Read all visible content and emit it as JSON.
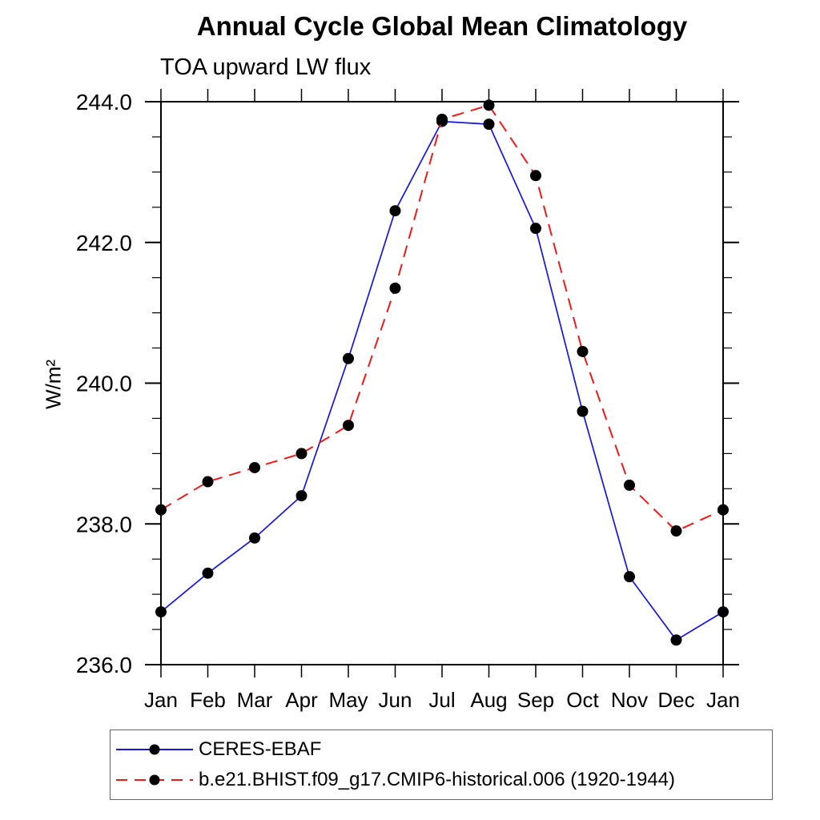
{
  "chart_data": {
    "type": "line",
    "title": "Annual Cycle Global Mean Climatology",
    "subtitle": "TOA upward LW flux",
    "xlabel": "",
    "ylabel": "W/m²",
    "categories": [
      "Jan",
      "Feb",
      "Mar",
      "Apr",
      "May",
      "Jun",
      "Jul",
      "Aug",
      "Sep",
      "Oct",
      "Nov",
      "Dec",
      "Jan"
    ],
    "series": [
      {
        "name": "CERES-EBAF",
        "color": "#1515dd",
        "style": "solid",
        "values": [
          236.75,
          237.3,
          237.8,
          238.4,
          240.35,
          242.45,
          243.72,
          243.68,
          242.2,
          239.6,
          237.25,
          236.35,
          236.75
        ]
      },
      {
        "name": "b.e21.BHIST.f09_g17.CMIP6-historical.006 (1920-1944)",
        "color": "#ee1a1a",
        "style": "dashed",
        "values": [
          238.2,
          238.6,
          238.8,
          239.0,
          239.4,
          241.35,
          243.75,
          243.95,
          242.95,
          240.45,
          238.55,
          237.9,
          238.2
        ]
      }
    ],
    "marker_color": "#000000",
    "ylim": [
      236.0,
      244.0
    ],
    "yticks_major": [
      "236.0",
      "238.0",
      "240.0",
      "242.0",
      "244.0"
    ],
    "ytick_minor_step": 0.5,
    "grid": false,
    "legend_position": "bottom-left-box"
  }
}
